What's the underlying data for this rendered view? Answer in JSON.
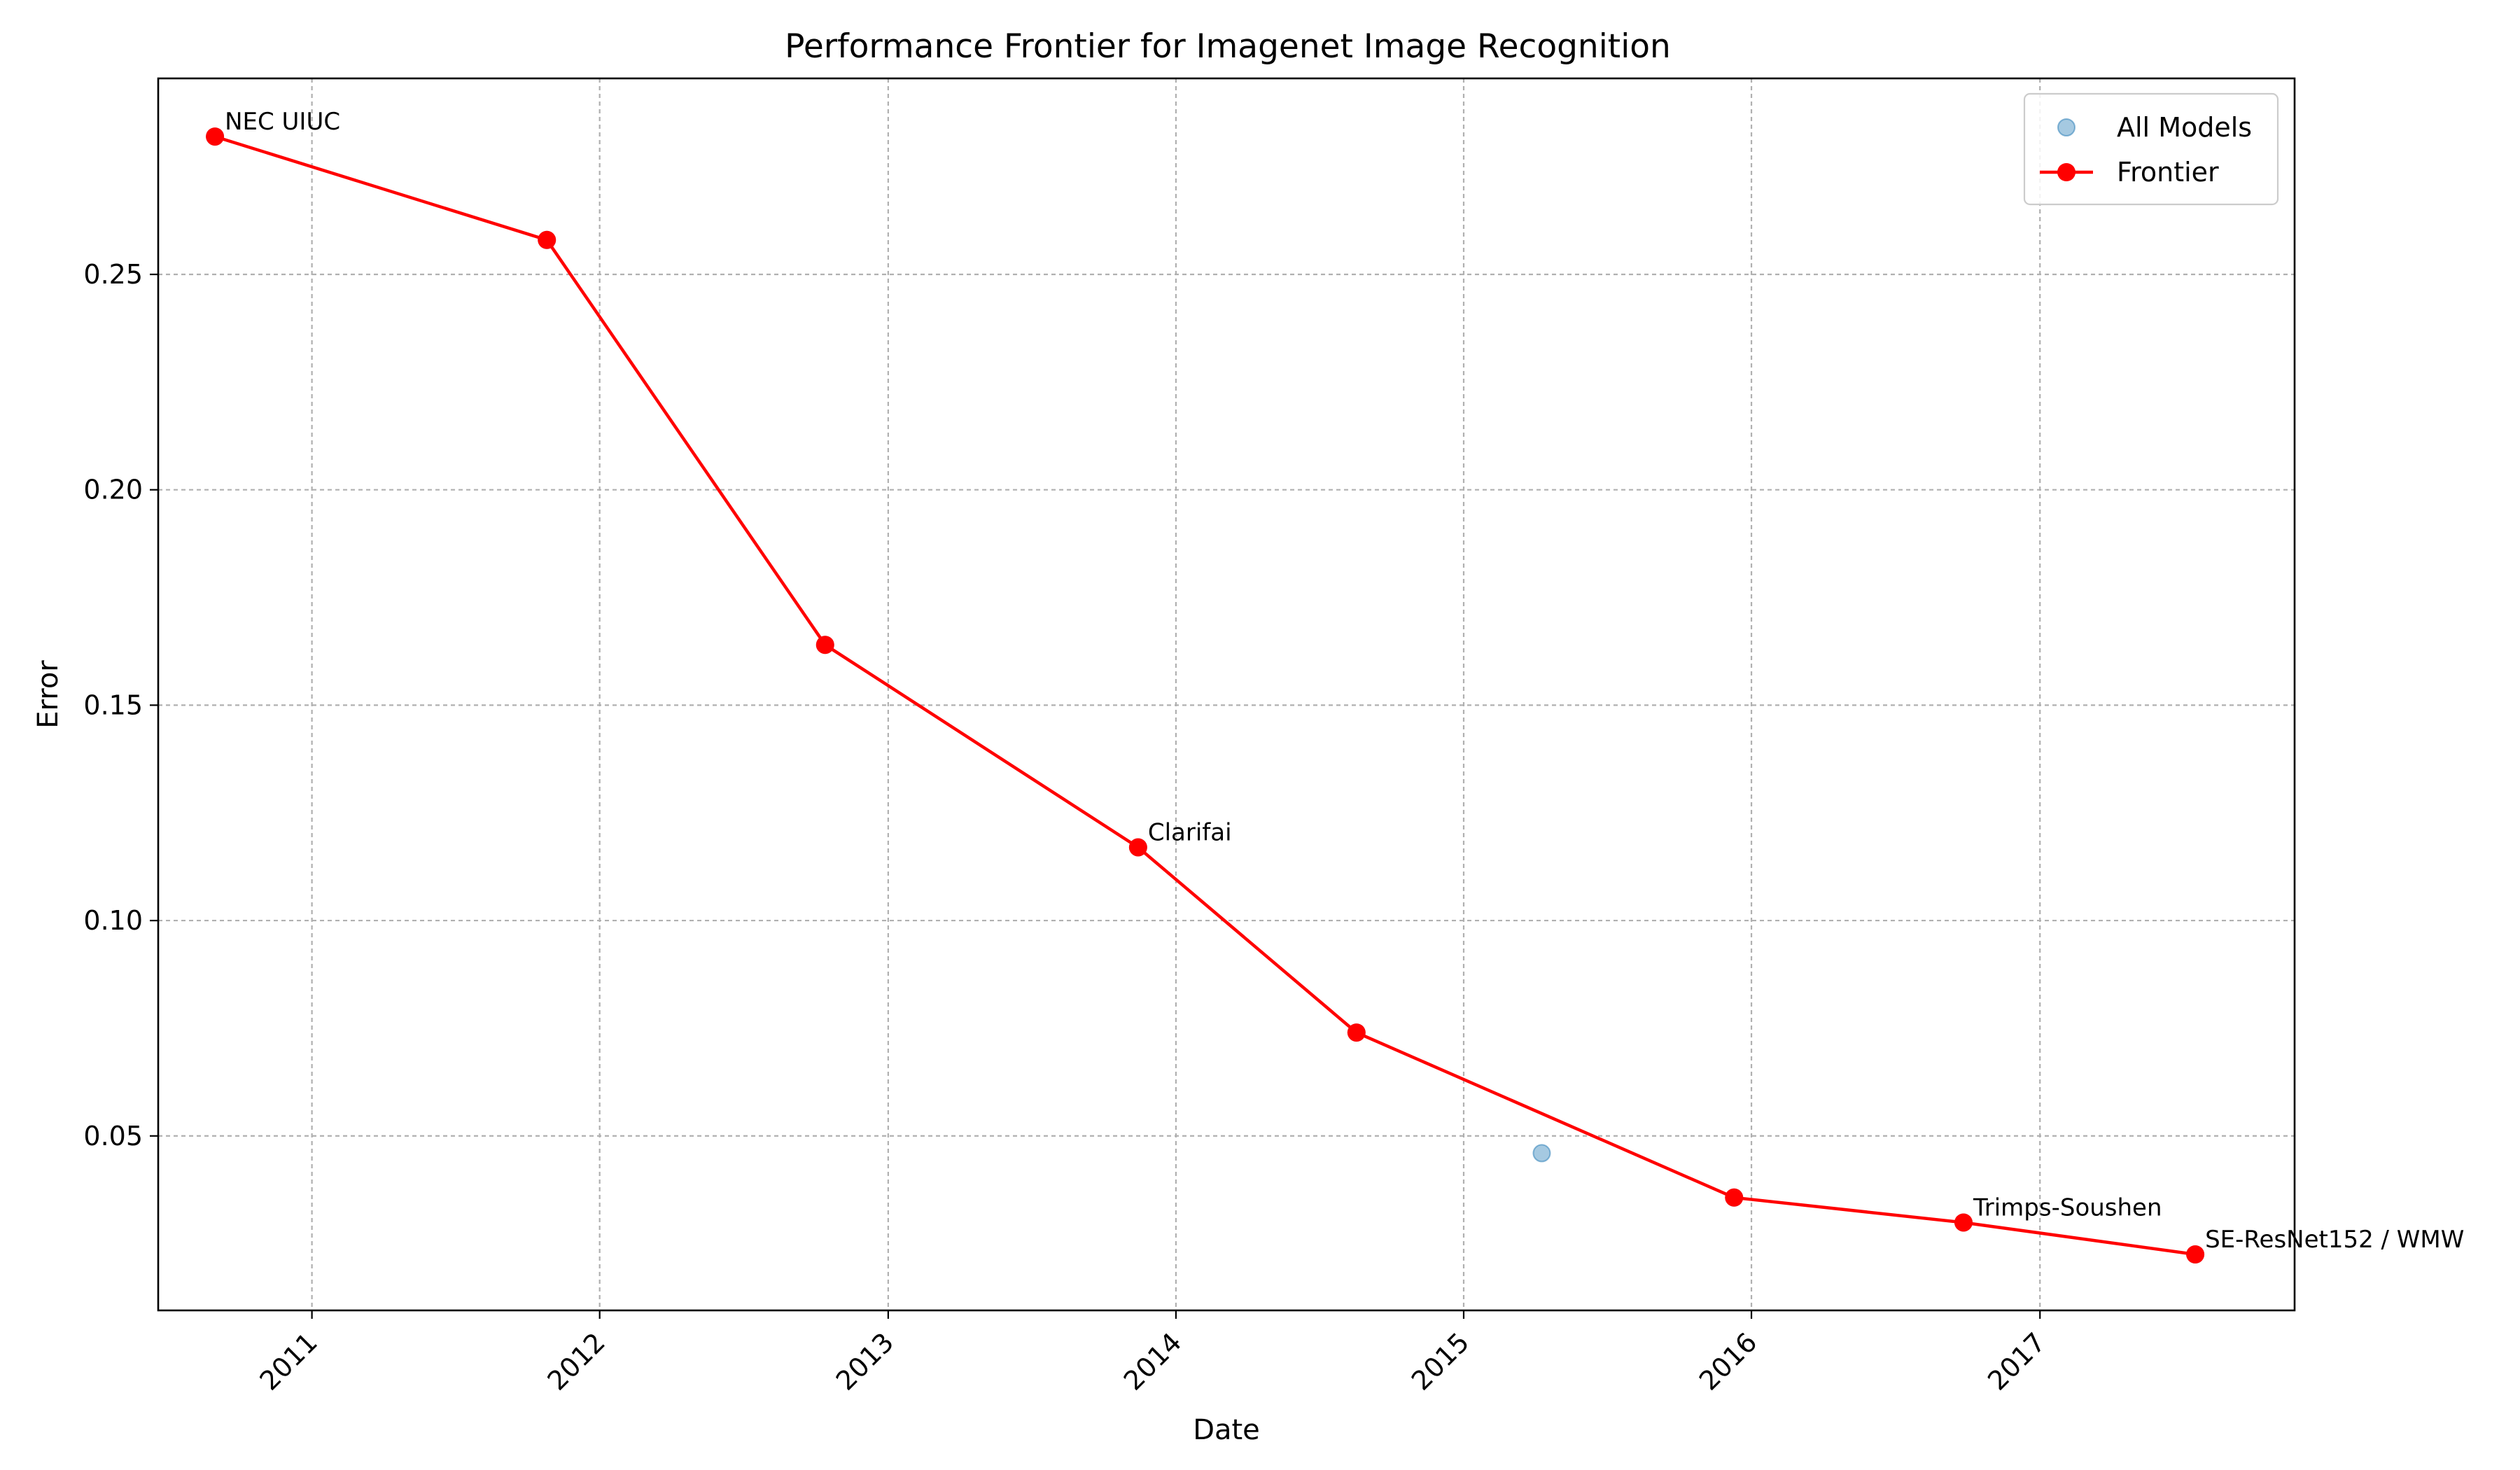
{
  "chart_data": {
    "type": "line",
    "title": "Performance Frontier for Imagenet Image Recognition",
    "xlabel": "Date",
    "ylabel": "Error",
    "x_ticks": [
      "2011",
      "2012",
      "2013",
      "2014",
      "2015",
      "2016",
      "2017"
    ],
    "y_ticks": [
      "0.05",
      "0.10",
      "0.15",
      "0.20",
      "0.25"
    ],
    "xlim": [
      "2010-06-20",
      "2017-11-20"
    ],
    "ylim": [
      0.0095,
      0.2955
    ],
    "grid": true,
    "legend_position": "top-right",
    "colors": {
      "all_models": "#1f77b4",
      "frontier": "#ff0000"
    },
    "series": [
      {
        "name": "All Models",
        "kind": "scatter",
        "points": [
          {
            "x": "2010-08-31",
            "y": 0.282
          },
          {
            "x": "2011-10-26",
            "y": 0.258
          },
          {
            "x": "2012-10-13",
            "y": 0.164
          },
          {
            "x": "2013-11-14",
            "y": 0.117
          },
          {
            "x": "2014-08-18",
            "y": 0.074
          },
          {
            "x": "2015-04-10",
            "y": 0.046
          },
          {
            "x": "2015-12-10",
            "y": 0.0357
          },
          {
            "x": "2016-09-26",
            "y": 0.0299
          },
          {
            "x": "2017-07-17",
            "y": 0.0225
          }
        ]
      },
      {
        "name": "Frontier",
        "kind": "line",
        "points": [
          {
            "x": "2010-08-31",
            "y": 0.282
          },
          {
            "x": "2011-10-26",
            "y": 0.258
          },
          {
            "x": "2012-10-13",
            "y": 0.164
          },
          {
            "x": "2013-11-14",
            "y": 0.117
          },
          {
            "x": "2014-08-18",
            "y": 0.074
          },
          {
            "x": "2015-12-10",
            "y": 0.0357
          },
          {
            "x": "2016-09-26",
            "y": 0.0299
          },
          {
            "x": "2017-07-17",
            "y": 0.0225
          }
        ]
      }
    ],
    "annotations": [
      {
        "text": "NEC UIUC",
        "x": "2010-08-31",
        "y": 0.282
      },
      {
        "text": "Clarifai",
        "x": "2013-11-14",
        "y": 0.117
      },
      {
        "text": "Trimps-Soushen",
        "x": "2016-09-26",
        "y": 0.0299
      },
      {
        "text": "SE-ResNet152 / WMW",
        "x": "2017-07-17",
        "y": 0.0225
      }
    ]
  }
}
